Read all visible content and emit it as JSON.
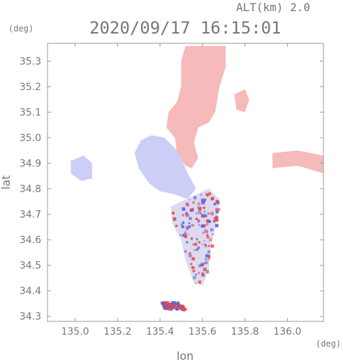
{
  "header": {
    "altitude_label": "ALT(km) 2.0",
    "timestamp": "2020/09/17 16:15:01",
    "lat_unit": "(deg)",
    "lon_unit": "(deg)"
  },
  "chart_data": {
    "type": "heatmap",
    "title": "2020/09/17 16:15:01",
    "xlabel": "lon",
    "ylabel": "lat",
    "xlim": [
      134.87,
      136.17
    ],
    "ylim": [
      34.28,
      35.37
    ],
    "x_ticks": [
      135.0,
      135.2,
      135.4,
      135.6,
      135.8,
      136.0
    ],
    "x_tick_labels": [
      "135.0",
      "135.2",
      "135.4",
      "135.6",
      "135.8",
      "136.0"
    ],
    "y_ticks": [
      34.3,
      34.4,
      34.5,
      34.6,
      34.7,
      34.8,
      34.9,
      35.0,
      35.1,
      35.2,
      35.3
    ],
    "y_tick_labels": [
      "34.3",
      "34.4",
      "34.5",
      "34.6",
      "34.7",
      "34.8",
      "34.9",
      "35.0",
      "35.1",
      "35.2",
      "35.3"
    ],
    "grid": false,
    "colors": {
      "receding": "#f5b2b2",
      "approaching": "#c6c9f6",
      "strong_red": "#e0484a",
      "strong_blue": "#5a62e0"
    },
    "regions": [
      {
        "name": "north-red",
        "polarity": "red",
        "points": [
          [
            135.52,
            35.36
          ],
          [
            135.71,
            35.36
          ],
          [
            135.71,
            35.28
          ],
          [
            135.68,
            35.2
          ],
          [
            135.66,
            35.1
          ],
          [
            135.63,
            35.06
          ],
          [
            135.58,
            35.04
          ],
          [
            135.56,
            34.98
          ],
          [
            135.58,
            34.92
          ],
          [
            135.55,
            34.88
          ],
          [
            135.52,
            34.89
          ],
          [
            135.48,
            34.94
          ],
          [
            135.47,
            35.0
          ],
          [
            135.43,
            35.04
          ],
          [
            135.44,
            35.1
          ],
          [
            135.48,
            35.14
          ],
          [
            135.5,
            35.2
          ],
          [
            135.5,
            35.3
          ]
        ]
      },
      {
        "name": "central-blue",
        "polarity": "blue",
        "points": [
          [
            135.31,
            34.99
          ],
          [
            135.36,
            35.01
          ],
          [
            135.42,
            35.0
          ],
          [
            135.47,
            34.96
          ],
          [
            135.5,
            34.92
          ],
          [
            135.53,
            34.86
          ],
          [
            135.57,
            34.8
          ],
          [
            135.53,
            34.76
          ],
          [
            135.46,
            34.78
          ],
          [
            135.4,
            34.79
          ],
          [
            135.35,
            34.82
          ],
          [
            135.3,
            34.88
          ],
          [
            135.28,
            34.94
          ]
        ]
      },
      {
        "name": "west-blue",
        "polarity": "blue",
        "points": [
          [
            134.98,
            34.91
          ],
          [
            135.04,
            34.93
          ],
          [
            135.08,
            34.9
          ],
          [
            135.08,
            34.84
          ],
          [
            135.03,
            34.83
          ],
          [
            134.98,
            34.86
          ]
        ]
      },
      {
        "name": "east-red-band",
        "polarity": "red",
        "points": [
          [
            135.93,
            34.94
          ],
          [
            136.05,
            34.95
          ],
          [
            136.17,
            34.93
          ],
          [
            136.17,
            34.86
          ],
          [
            136.05,
            34.89
          ],
          [
            135.93,
            34.88
          ]
        ]
      },
      {
        "name": "northeast-red",
        "polarity": "red",
        "points": [
          [
            135.75,
            35.17
          ],
          [
            135.8,
            35.19
          ],
          [
            135.82,
            35.15
          ],
          [
            135.8,
            35.1
          ],
          [
            135.76,
            35.11
          ]
        ]
      },
      {
        "name": "southern-mixed",
        "polarity": "mixed",
        "points": [
          [
            135.45,
            34.73
          ],
          [
            135.55,
            34.77
          ],
          [
            135.63,
            34.8
          ],
          [
            135.68,
            34.76
          ],
          [
            135.67,
            34.68
          ],
          [
            135.64,
            34.58
          ],
          [
            135.63,
            34.48
          ],
          [
            135.6,
            34.42
          ],
          [
            135.56,
            34.43
          ],
          [
            135.52,
            34.52
          ],
          [
            135.5,
            34.6
          ],
          [
            135.46,
            34.66
          ]
        ]
      },
      {
        "name": "south-tail",
        "polarity": "mixed",
        "points": [
          [
            135.4,
            34.36
          ],
          [
            135.48,
            34.36
          ],
          [
            135.52,
            34.33
          ],
          [
            135.42,
            34.33
          ]
        ]
      }
    ]
  }
}
